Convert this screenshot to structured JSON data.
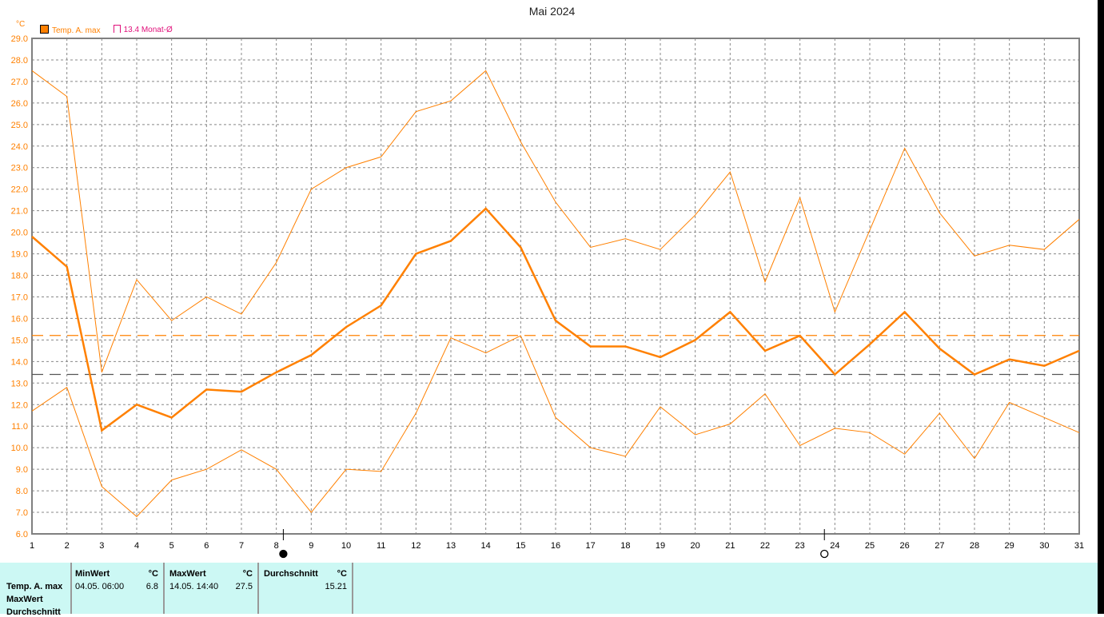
{
  "chart_data": {
    "type": "line",
    "title": "Mai 2024",
    "ylabel": "°C",
    "ylim": [
      6.0,
      29.0
    ],
    "xlim": [
      1,
      31
    ],
    "grid": true,
    "x": [
      1,
      2,
      3,
      4,
      5,
      6,
      7,
      8,
      9,
      10,
      11,
      12,
      13,
      14,
      15,
      16,
      17,
      18,
      19,
      20,
      21,
      22,
      23,
      24,
      25,
      26,
      27,
      28,
      29,
      30,
      31
    ],
    "y_ticks": [
      "6.0",
      "7.0",
      "8.0",
      "9.0",
      "10.0",
      "11.0",
      "12.0",
      "13.0",
      "14.0",
      "15.0",
      "16.0",
      "17.0",
      "18.0",
      "19.0",
      "20.0",
      "21.0",
      "22.0",
      "23.0",
      "24.0",
      "25.0",
      "26.0",
      "27.0",
      "28.0",
      "29.0"
    ],
    "series": [
      {
        "role": "max",
        "color": "#ff8000",
        "values": [
          27.5,
          26.3,
          13.5,
          17.8,
          15.9,
          17.0,
          16.2,
          18.6,
          22.0,
          23.0,
          23.5,
          25.6,
          26.1,
          27.5,
          24.2,
          21.4,
          19.3,
          19.7,
          19.2,
          20.8,
          22.8,
          17.7,
          21.6,
          16.3,
          20.1,
          23.9,
          20.9,
          18.9,
          19.4,
          19.2,
          20.6
        ]
      },
      {
        "role": "avg",
        "name": "Temp. A. max",
        "color": "#ff8000",
        "values": [
          19.8,
          18.4,
          10.8,
          12.0,
          11.4,
          12.7,
          12.6,
          13.5,
          14.3,
          15.6,
          16.6,
          19.0,
          19.6,
          21.1,
          19.3,
          15.9,
          14.7,
          14.7,
          14.2,
          15.0,
          16.3,
          14.5,
          15.2,
          13.4,
          14.8,
          16.3,
          14.6,
          13.4,
          14.1,
          13.8,
          14.5
        ]
      },
      {
        "role": "min",
        "color": "#ff8000",
        "values": [
          11.7,
          12.8,
          8.2,
          6.8,
          8.5,
          9.0,
          9.9,
          9.0,
          7.0,
          9.0,
          8.9,
          11.6,
          15.1,
          14.4,
          15.2,
          11.4,
          10.0,
          9.6,
          11.9,
          10.6,
          11.1,
          12.5,
          10.1,
          10.9,
          10.7,
          9.7,
          11.6,
          9.5,
          12.1,
          11.4,
          10.7
        ]
      }
    ],
    "reference_lines": [
      {
        "value": 15.21,
        "color": "#ff8000"
      },
      {
        "value": 13.4,
        "name": "13.4 Monat-Ø",
        "color": "#e0107a"
      }
    ],
    "moon_phases": [
      {
        "day": 8.2,
        "phase": "new-moon"
      },
      {
        "day": 23.7,
        "phase": "full-moon"
      }
    ],
    "legend_position": "top-left"
  },
  "legend": {
    "series": "Temp. A. max",
    "monthly_avg": "13.4 Monat-Ø"
  },
  "stats": {
    "row_labels": [
      "Temp. A. max",
      "MaxWert",
      "Durchschnitt"
    ],
    "min_header": "MinWert",
    "max_header": "MaxWert",
    "avg_header": "Durchschnitt",
    "unit": "°C",
    "min_time": "04.05.  06:00",
    "min_value": "6.8",
    "max_time": "14.05.  14:40",
    "max_value": "27.5",
    "avg_value": "15.21"
  }
}
